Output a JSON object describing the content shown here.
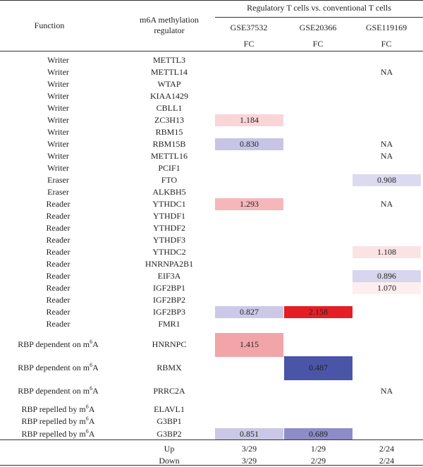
{
  "header": {
    "group_title": "Regulatory T cells vs. conventional T cells",
    "col_function": "Function",
    "col_regulator_line1": "m6A methylation",
    "col_regulator_line2": "regulator",
    "datasets": [
      "GSE37532",
      "GSE20366",
      "GSE119169"
    ],
    "metric": "FC"
  },
  "rows": [
    {
      "function": "Writer",
      "regulator": "METTL3",
      "c1": "",
      "c2": "",
      "c3": ""
    },
    {
      "function": "Writer",
      "regulator": "METTL14",
      "c1": "",
      "c2": "",
      "c3": "NA"
    },
    {
      "function": "Writer",
      "regulator": "WTAP",
      "c1": "",
      "c2": "",
      "c3": ""
    },
    {
      "function": "Writer",
      "regulator": "KIAA1429",
      "c1": "",
      "c2": "",
      "c3": ""
    },
    {
      "function": "Writer",
      "regulator": "CBLL1",
      "c1": "",
      "c2": "",
      "c3": ""
    },
    {
      "function": "Writer",
      "regulator": "ZC3H13",
      "c1": "1.184",
      "c2": "",
      "c3": ""
    },
    {
      "function": "Writer",
      "regulator": "RBM15",
      "c1": "",
      "c2": "",
      "c3": ""
    },
    {
      "function": "Writer",
      "regulator": "RBM15B",
      "c1": "0.830",
      "c2": "",
      "c3": "NA"
    },
    {
      "function": "Writer",
      "regulator": "METTL16",
      "c1": "",
      "c2": "",
      "c3": "NA"
    },
    {
      "function": "Writer",
      "regulator": "PCIF1",
      "c1": "",
      "c2": "",
      "c3": ""
    },
    {
      "function": "Eraser",
      "regulator": "FTO",
      "c1": "",
      "c2": "",
      "c3": "0.908"
    },
    {
      "function": "Eraser",
      "regulator": "ALKBH5",
      "c1": "",
      "c2": "",
      "c3": ""
    },
    {
      "function": "Reader",
      "regulator": "YTHDC1",
      "c1": "1.293",
      "c2": "",
      "c3": "NA"
    },
    {
      "function": "Reader",
      "regulator": "YTHDF1",
      "c1": "",
      "c2": "",
      "c3": ""
    },
    {
      "function": "Reader",
      "regulator": "YTHDF2",
      "c1": "",
      "c2": "",
      "c3": ""
    },
    {
      "function": "Reader",
      "regulator": "YTHDF3",
      "c1": "",
      "c2": "",
      "c3": ""
    },
    {
      "function": "Reader",
      "regulator": "YTHDC2",
      "c1": "",
      "c2": "",
      "c3": "1.108"
    },
    {
      "function": "Reader",
      "regulator": "HNRNPA2B1",
      "c1": "",
      "c2": "",
      "c3": ""
    },
    {
      "function": "Reader",
      "regulator": "EIF3A",
      "c1": "",
      "c2": "",
      "c3": "0.896"
    },
    {
      "function": "Reader",
      "regulator": "IGF2BP1",
      "c1": "",
      "c2": "",
      "c3": "1.070"
    },
    {
      "function": "Reader",
      "regulator": "IGF2BP2",
      "c1": "",
      "c2": "",
      "c3": ""
    },
    {
      "function": "Reader",
      "regulator": "IGF2BP3",
      "c1": "0.827",
      "c2": "2.158",
      "c3": ""
    },
    {
      "function": "Reader",
      "regulator": "FMR1",
      "c1": "",
      "c2": "",
      "c3": ""
    },
    {
      "function": "RBP dependent on m",
      "sup": "6",
      "function_tail": "A",
      "regulator": "HNRNPC",
      "c1": "1.415",
      "c2": "",
      "c3": ""
    },
    {
      "function": "RBP dependent on m",
      "sup": "6",
      "function_tail": "A",
      "regulator": "RBMX",
      "c1": "",
      "c2": "0.487",
      "c3": ""
    },
    {
      "function": "RBP dependent on m",
      "sup": "6",
      "function_tail": "A",
      "regulator": "PRRC2A",
      "c1": "",
      "c2": "",
      "c3": "NA"
    },
    {
      "function": "RBP repelled by m",
      "sup": "6",
      "function_tail": "A",
      "regulator": "ELAVL1",
      "c1": "",
      "c2": "",
      "c3": ""
    },
    {
      "function": "RBP repelled by m",
      "sup": "6",
      "function_tail": "A",
      "regulator": "G3BP1",
      "c1": "",
      "c2": "",
      "c3": ""
    },
    {
      "function": "RBP repelled by m",
      "sup": "6",
      "function_tail": "A",
      "regulator": "G3BP2",
      "c1": "0.851",
      "c2": "0.689",
      "c3": ""
    }
  ],
  "summary": [
    {
      "label": "Up",
      "c1": "3/29",
      "c2": "1/29",
      "c3": "2/24"
    },
    {
      "label": "Down",
      "c1": "3/29",
      "c2": "2/29",
      "c3": "2/24"
    }
  ],
  "colors": {
    "ZC3H13": "#fad5d8",
    "RBM15B": "#c7c4e6",
    "FTO": "#dcdaf0",
    "YTHDC1": "#f6b7bb",
    "YTHDC2": "#fbe3e5",
    "EIF3A": "#d8d6ee",
    "IGF2BP1": "#fdeeef",
    "IGF2BP3_c1": "#ccc9e8",
    "IGF2BP3_c2": "#e51e25",
    "HNRNPC": "#f2a5a8",
    "RBMX": "#4b55a8",
    "G3BP2_c1": "#cbc8e7",
    "G3BP2_c2": "#8e8cc8"
  }
}
